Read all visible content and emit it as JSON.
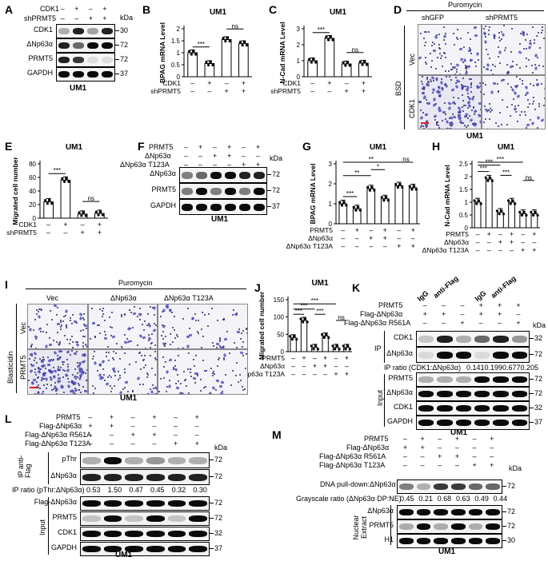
{
  "panels": {
    "A": {
      "letter": "A",
      "cell_line": "UM1",
      "rows": [
        {
          "label": "CDK1",
          "signs": [
            "–",
            "+",
            "–",
            "+"
          ]
        },
        {
          "label": "shPRMT5",
          "signs": [
            "–",
            "–",
            "+",
            "+"
          ]
        }
      ],
      "blots": [
        {
          "label": "CDK1",
          "mw": "30"
        },
        {
          "label": "ΔNp63α",
          "mw": "72"
        },
        {
          "label": "PRMT5",
          "mw": "72"
        },
        {
          "label": "GAPDH",
          "mw": "37"
        }
      ],
      "kda": "kDa"
    },
    "B": {
      "letter": "B"
    },
    "C": {
      "letter": "C"
    },
    "D": {
      "letter": "D",
      "top_label": "Puromycin",
      "col_labels": [
        "shGFP",
        "shPRMT5"
      ],
      "side_label": "BSD",
      "row_labels": [
        "Vec",
        "CDK1"
      ],
      "cell_line": "UM1"
    },
    "E": {
      "letter": "E"
    },
    "F": {
      "letter": "F",
      "cell_line": "UM1",
      "rows": [
        {
          "label": "PRMT5",
          "signs": [
            "–",
            "+",
            "–",
            "+",
            "–",
            "+"
          ]
        },
        {
          "label": "ΔNp63α",
          "signs": [
            "–",
            "–",
            "+",
            "+",
            "–",
            "–"
          ]
        },
        {
          "label": "ΔNp63α T123A",
          "signs": [
            "–",
            "–",
            "–",
            "–",
            "+",
            "+"
          ]
        }
      ],
      "blots": [
        {
          "label": "ΔNp63α",
          "mw": "72"
        },
        {
          "label": "PRMT5",
          "mw": "72"
        },
        {
          "label": "GAPDH",
          "mw": "37"
        }
      ],
      "kda": "kDa"
    },
    "G": {
      "letter": "G"
    },
    "H": {
      "letter": "H"
    },
    "I": {
      "letter": "I",
      "top_label": "Puromycin",
      "col_labels": [
        "Vec",
        "ΔNp63α",
        "ΔNp63α T123A"
      ],
      "side_label": "Blasticidin",
      "row_labels": [
        "Vec",
        "PRMT5"
      ],
      "cell_line": "UM1"
    },
    "J": {
      "letter": "J"
    },
    "K": {
      "letter": "K",
      "cell_line": "UM1",
      "rows": [
        {
          "label": "PRMT5",
          "signs": [
            "–",
            "–",
            "–",
            "+",
            "+",
            "+"
          ]
        },
        {
          "label": "Flag-ΔNp63α",
          "signs": [
            "+",
            "+",
            "–",
            "+",
            "+",
            "–"
          ]
        },
        {
          "label": "Flag-ΔNp63α R561A",
          "signs": [
            "–",
            "–",
            "+",
            "–",
            "–",
            "+"
          ]
        }
      ],
      "ip_heads": [
        "IgG",
        "anti-Flag",
        "IgG",
        "anti-Flag"
      ],
      "kda": "kDa",
      "ip_group": "IP",
      "ip_blots": [
        {
          "label": "CDK1",
          "mw": "32"
        },
        {
          "label": "ΔNp63α",
          "mw": "72"
        }
      ],
      "ratio_label": "IP ratio (CDK1:ΔNp63α)",
      "ratios": [
        "0.141",
        "0.199",
        "0.677",
        "0.205"
      ],
      "input_group": "Input",
      "input_blots": [
        {
          "label": "PRMT5",
          "mw": "72"
        },
        {
          "label": "ΔNp63α",
          "mw": "72"
        },
        {
          "label": "CDK1",
          "mw": "32"
        },
        {
          "label": "GAPDH",
          "mw": "37"
        }
      ]
    },
    "L": {
      "letter": "L",
      "cell_line": "UM1",
      "rows": [
        {
          "label": "PRMT5",
          "signs": [
            "–",
            "+",
            "–",
            "+",
            "–",
            "+"
          ]
        },
        {
          "label": "Flag-ΔNp63α",
          "signs": [
            "+",
            "+",
            "–",
            "–",
            "–",
            "–"
          ]
        },
        {
          "label": "Flag-ΔNp63α R561A",
          "signs": [
            "–",
            "–",
            "+",
            "+",
            "–",
            "–"
          ]
        },
        {
          "label": "Flag-ΔNp63α T123A",
          "signs": [
            "–",
            "–",
            "–",
            "–",
            "+",
            "+"
          ]
        }
      ],
      "kda": "kDa",
      "ip_group": "IP anti-Flag",
      "ip_blots": [
        {
          "label": "pThr",
          "mw": "72"
        },
        {
          "label": "ΔNp63α",
          "mw": "72"
        }
      ],
      "ratio_label": "IP ratio (pThr:ΔNp63α)",
      "ratios": [
        "0.53",
        "1.50",
        "0.47",
        "0.45",
        "0.32",
        "0.30"
      ],
      "input_group": "Input",
      "input_blots": [
        {
          "label": "Flag-ΔNp63α",
          "mw": "72"
        },
        {
          "label": "PRMT5",
          "mw": "72"
        },
        {
          "label": "CDK1",
          "mw": "32"
        },
        {
          "label": "GAPDH",
          "mw": "37"
        }
      ]
    },
    "M": {
      "letter": "M",
      "cell_line": "UM1",
      "rows": [
        {
          "label": "PRMT5",
          "signs": [
            "–",
            "+",
            "–",
            "+",
            "–",
            "+"
          ]
        },
        {
          "label": "Flag-ΔNp63α",
          "signs": [
            "+",
            "+",
            "–",
            "–",
            "–",
            "–"
          ]
        },
        {
          "label": "Flag-ΔNp63α R561A",
          "signs": [
            "–",
            "–",
            "+",
            "+",
            "–",
            "–"
          ]
        },
        {
          "label": "Flag-ΔNp63α T123A",
          "signs": [
            "–",
            "–",
            "–",
            "–",
            "+",
            "+"
          ]
        }
      ],
      "kda": "kDa",
      "dna_label": "DNA pull-down:ΔNp63α",
      "dna_mw": "72",
      "ratio_label": "Grayscale ratio (ΔNp63α DP:NE)",
      "ratios": [
        "0.45",
        "0.21",
        "0.68",
        "0.63",
        "0.49",
        "0.44"
      ],
      "ne_group": "Nuclear Extract",
      "ne_blots": [
        {
          "label": "ΔNp63α",
          "mw": "72"
        },
        {
          "label": "PRMT5",
          "mw": "72"
        },
        {
          "label": "H1",
          "mw": "30"
        }
      ]
    }
  },
  "chart_data": [
    {
      "id": "B",
      "type": "bar",
      "title": "UM1",
      "ylabel": "BPAG mRNA Level",
      "ylim": [
        0,
        2.0
      ],
      "yticks": [
        0,
        0.5,
        1.0,
        1.5,
        2.0
      ],
      "values": [
        1.0,
        0.55,
        1.55,
        1.38
      ],
      "xrows": [
        {
          "label": "CDK1",
          "signs": [
            "–",
            "+",
            "–",
            "+"
          ]
        },
        {
          "label": "shPRMT5",
          "signs": [
            "–",
            "–",
            "+",
            "+"
          ]
        }
      ],
      "sig": [
        {
          "from": 0,
          "to": 1,
          "text": "***"
        },
        {
          "from": 2,
          "to": 3,
          "text": "ns"
        }
      ]
    },
    {
      "id": "C",
      "type": "bar",
      "title": "UM1",
      "ylabel": "N-Cad mRNA Level",
      "ylim": [
        0,
        3
      ],
      "yticks": [
        0,
        1,
        2,
        3
      ],
      "values": [
        1.0,
        2.4,
        0.8,
        0.85
      ],
      "xrows": [
        {
          "label": "CDK1",
          "signs": [
            "–",
            "+",
            "–",
            "+"
          ]
        },
        {
          "label": "shPRMT5",
          "signs": [
            "–",
            "–",
            "+",
            "+"
          ]
        }
      ],
      "sig": [
        {
          "from": 0,
          "to": 1,
          "text": "***"
        },
        {
          "from": 2,
          "to": 3,
          "text": "ns"
        }
      ]
    },
    {
      "id": "E",
      "type": "bar",
      "title": "UM1",
      "ylabel": "Migrated cell number",
      "ylim": [
        0,
        80
      ],
      "yticks": [
        0,
        20,
        40,
        60,
        80
      ],
      "values": [
        24,
        56,
        6,
        7
      ],
      "xrows": [
        {
          "label": "CDK1",
          "signs": [
            "–",
            "+",
            "–",
            "+"
          ]
        },
        {
          "label": "shPRMT5",
          "signs": [
            "–",
            "–",
            "+",
            "+"
          ]
        }
      ],
      "sig": [
        {
          "from": 0,
          "to": 1,
          "text": "***"
        },
        {
          "from": 2,
          "to": 3,
          "text": "ns"
        }
      ]
    },
    {
      "id": "G",
      "type": "bar",
      "title": "UM1",
      "ylabel": "BPAG mRNA Level",
      "ylim": [
        0,
        3
      ],
      "yticks": [
        0,
        1,
        2,
        3
      ],
      "values": [
        1.0,
        0.75,
        1.75,
        1.25,
        1.9,
        1.8
      ],
      "xrows": [
        {
          "label": "PRMT5",
          "signs": [
            "–",
            "+",
            "–",
            "+",
            "–",
            "+"
          ]
        },
        {
          "label": "ΔNp63α",
          "signs": [
            "–",
            "–",
            "+",
            "+",
            "–",
            "–"
          ]
        },
        {
          "label": "ΔNp63α T123A",
          "signs": [
            "–",
            "–",
            "–",
            "–",
            "+",
            "+"
          ]
        }
      ],
      "sig": [
        {
          "from": 0,
          "to": 1,
          "text": "***"
        },
        {
          "from": 0,
          "to": 2,
          "text": "**"
        },
        {
          "from": 2,
          "to": 3,
          "text": "*"
        },
        {
          "from": 0,
          "to": 4,
          "text": "**"
        },
        {
          "from": 4,
          "to": 5,
          "text": "ns"
        }
      ]
    },
    {
      "id": "H",
      "type": "bar",
      "title": "UM1",
      "ylabel": "N-Cad mRNA Level",
      "ylim": [
        0,
        2.5
      ],
      "yticks": [
        0,
        0.5,
        1.0,
        1.5,
        2.0,
        2.5
      ],
      "values": [
        1.0,
        1.9,
        0.6,
        1.0,
        0.55,
        0.55
      ],
      "xrows": [
        {
          "label": "PRMT5",
          "signs": [
            "–",
            "+",
            "–",
            "+",
            "–",
            "+"
          ]
        },
        {
          "label": "ΔNp63α",
          "signs": [
            "–",
            "–",
            "+",
            "+",
            "–",
            "–"
          ]
        },
        {
          "label": "ΔNp63α T123A",
          "signs": [
            "–",
            "–",
            "–",
            "–",
            "+",
            "+"
          ]
        }
      ],
      "sig": [
        {
          "from": 0,
          "to": 1,
          "text": "***"
        },
        {
          "from": 0,
          "to": 2,
          "text": "***"
        },
        {
          "from": 0,
          "to": 4,
          "text": "***"
        },
        {
          "from": 2,
          "to": 3,
          "text": "***"
        },
        {
          "from": 4,
          "to": 5,
          "text": "ns"
        }
      ]
    },
    {
      "id": "J",
      "type": "bar",
      "title": "UM1",
      "ylabel": "Migrated cell number",
      "ylim": [
        0,
        150
      ],
      "yticks": [
        0,
        50,
        100,
        150
      ],
      "values": [
        40,
        90,
        12,
        45,
        12,
        12
      ],
      "xrows": [
        {
          "label": "PRMT5",
          "signs": [
            "–",
            "+",
            "–",
            "+",
            "–",
            "+"
          ]
        },
        {
          "label": "ΔNp63α",
          "signs": [
            "–",
            "–",
            "+",
            "+",
            "–",
            "–"
          ]
        },
        {
          "label": "ΔNp63α T123A",
          "signs": [
            "–",
            "–",
            "–",
            "–",
            "+",
            "+"
          ]
        }
      ],
      "sig": [
        {
          "from": 0,
          "to": 1,
          "text": "***"
        },
        {
          "from": 0,
          "to": 2,
          "text": "***"
        },
        {
          "from": 0,
          "to": 4,
          "text": "***"
        },
        {
          "from": 2,
          "to": 3,
          "text": "***"
        },
        {
          "from": 4,
          "to": 5,
          "text": "ns"
        }
      ]
    }
  ]
}
